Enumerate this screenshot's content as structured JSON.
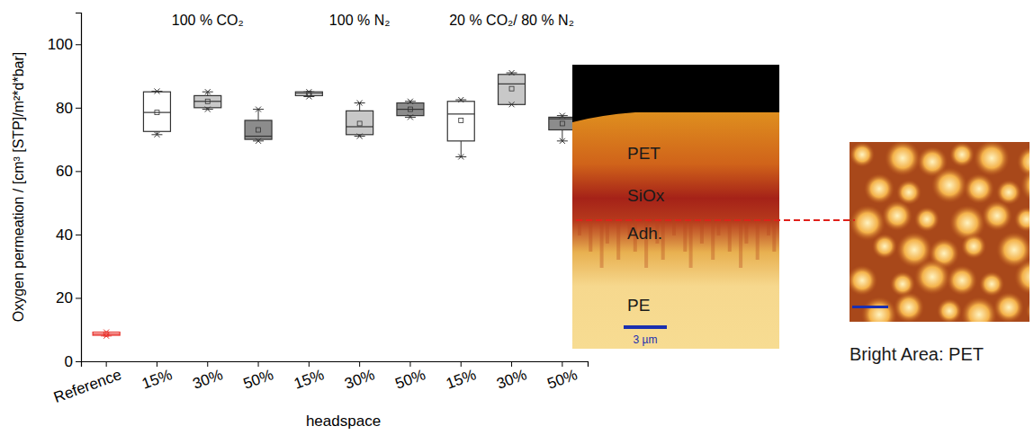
{
  "chart_data": {
    "type": "box",
    "y_label": "Oxygen permeation / [cm³ [STP]/m²*d*bar]",
    "x_label": "headspace",
    "groups": [
      "100 % CO₂",
      "100 % N₂",
      "20 % CO₂/ 80 % N₂"
    ],
    "categories": [
      "Reference",
      "15%",
      "30%",
      "50%",
      "15%",
      "30%",
      "50%",
      "15%",
      "30%",
      "50%"
    ],
    "boxes": [
      {
        "min": 8,
        "q1": 8.2,
        "median": 8.6,
        "q3": 9.2,
        "max": 9.2,
        "mean": 8.6
      },
      {
        "min": 71.5,
        "q1": 72.5,
        "median": 78.5,
        "q3": 85,
        "max": 85.2,
        "mean": 78.5
      },
      {
        "min": 79.5,
        "q1": 80,
        "median": 82,
        "q3": 83.8,
        "max": 85,
        "mean": 82
      },
      {
        "min": 69.5,
        "q1": 70,
        "median": 71,
        "q3": 76,
        "max": 79.5,
        "mean": 73
      },
      {
        "min": 83.5,
        "q1": 83.8,
        "median": 84.5,
        "q3": 85,
        "max": 85,
        "mean": 84.5
      },
      {
        "min": 71,
        "q1": 71.5,
        "median": 74,
        "q3": 79,
        "max": 81.5,
        "mean": 75
      },
      {
        "min": 77,
        "q1": 77.5,
        "median": 79.5,
        "q3": 81.5,
        "max": 82,
        "mean": 79.5
      },
      {
        "min": 64.5,
        "q1": 69.5,
        "median": 78,
        "q3": 82,
        "max": 82.5,
        "mean": 76
      },
      {
        "min": 81,
        "q1": 81,
        "median": 87.5,
        "q3": 90.5,
        "max": 91,
        "mean": 86
      },
      {
        "min": 69.5,
        "q1": 73,
        "median": 76.5,
        "q3": 77,
        "max": 77.5,
        "mean": 75
      }
    ],
    "colors": [
      "#e8302a",
      "#ffffff",
      "#c8c8c8",
      "#8c8c8c",
      "#ffffff",
      "#c8c8c8",
      "#8c8c8c",
      "#ffffff",
      "#c8c8c8",
      "#8c8c8c"
    ],
    "ylim": [
      0,
      110
    ],
    "yticks": [
      0,
      20,
      40,
      60,
      80,
      100
    ],
    "grid": false
  },
  "panels": {
    "cross_section": {
      "labels": [
        "PET",
        "SiOx",
        "Adh.",
        "PE"
      ],
      "scale_bar": "3 µm"
    },
    "surface": {
      "caption": "Bright Area: PET"
    }
  }
}
